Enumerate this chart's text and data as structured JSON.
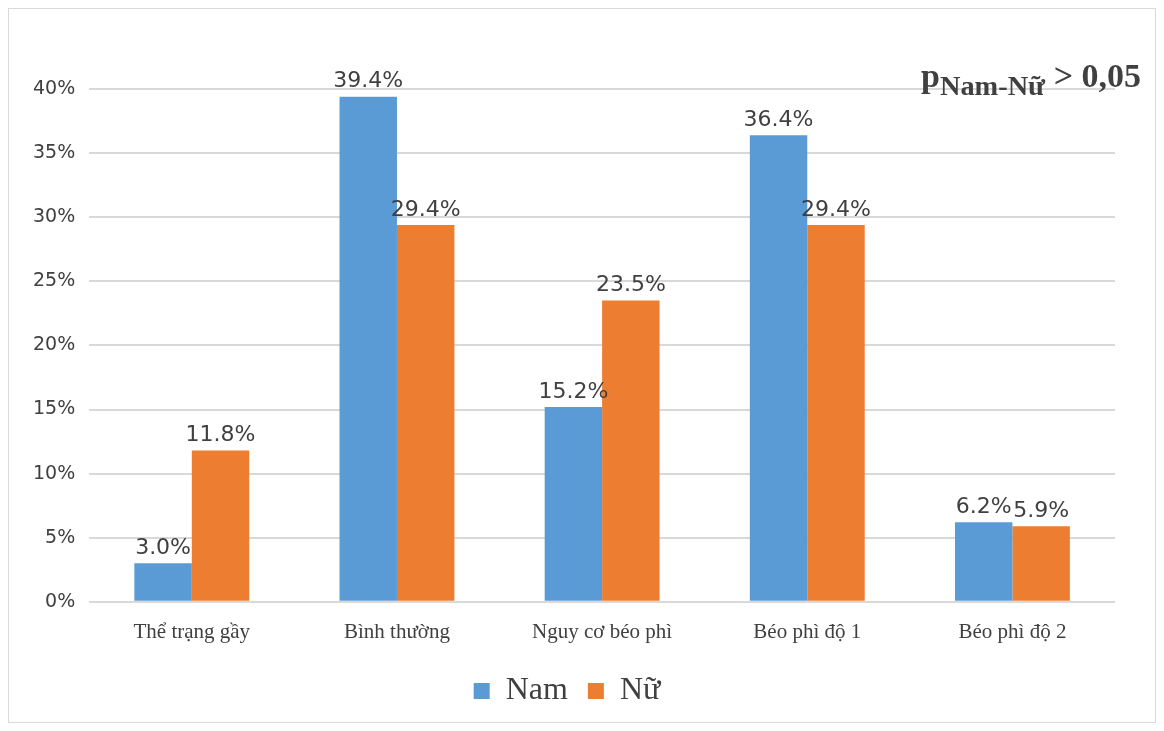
{
  "chart_data": {
    "type": "bar",
    "categories": [
      "Thể trạng gầy",
      "Bình thường",
      "Nguy cơ béo phì",
      "Béo phì độ 1",
      "Béo phì độ 2"
    ],
    "series": [
      {
        "name": "Nam",
        "color": "#5b9bd5",
        "values": [
          3.0,
          39.4,
          15.2,
          36.4,
          6.2
        ],
        "value_labels": [
          "3.0%",
          "39.4%",
          "15.2%",
          "36.4%",
          "6.2%"
        ]
      },
      {
        "name": "Nữ",
        "color": "#ed7d31",
        "values": [
          11.8,
          29.4,
          23.5,
          29.4,
          5.9
        ],
        "value_labels": [
          "11.8%",
          "29.4%",
          "23.5%",
          "29.4%",
          "5.9%"
        ]
      }
    ],
    "ylim": [
      0,
      40
    ],
    "yticks": [
      {
        "value": 0,
        "label": "0%"
      },
      {
        "value": 5,
        "label": "5%"
      },
      {
        "value": 10,
        "label": "10%"
      },
      {
        "value": 15,
        "label": "15%"
      },
      {
        "value": 20,
        "label": "20%"
      },
      {
        "value": 25,
        "label": "25%"
      },
      {
        "value": 30,
        "label": "30%"
      },
      {
        "value": 35,
        "label": "35%"
      },
      {
        "value": 40,
        "label": "40%"
      }
    ],
    "grid": "y",
    "legend": "bottom",
    "annotations": [
      "p$_{Nam-Nữ}$ > 0,05"
    ]
  }
}
